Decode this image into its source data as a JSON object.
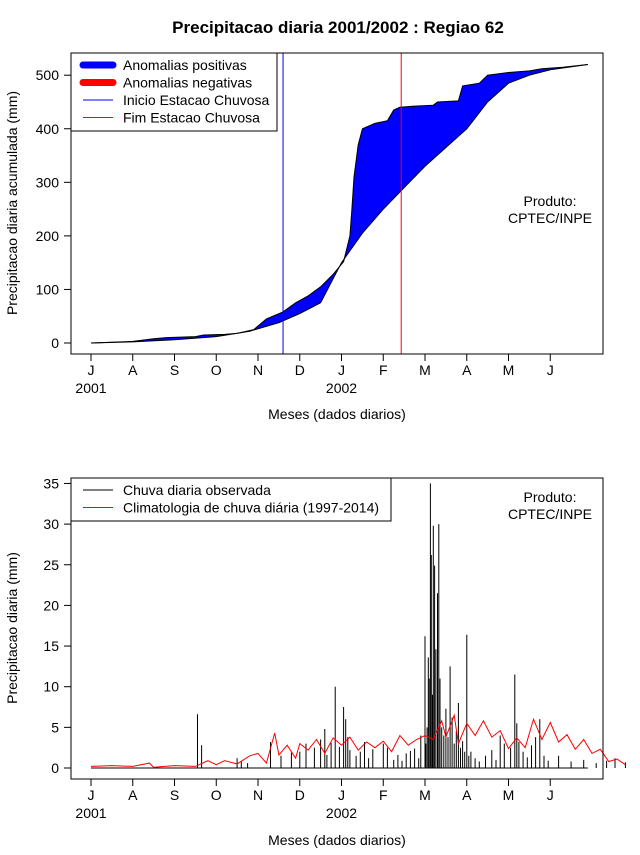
{
  "chart_data": [
    {
      "type": "area",
      "title": "Precipitacao diaria 2001/2002 : Regiao 62",
      "xlabel": "Meses (dados diarios)",
      "ylabel": "Precipitacao diaria acumulada (mm)",
      "ylim": [
        0,
        520
      ],
      "yticks": [
        0,
        100,
        200,
        300,
        400,
        500
      ],
      "month_ticks": [
        "J",
        "A",
        "S",
        "O",
        "N",
        "D",
        "J",
        "F",
        "M",
        "A",
        "M",
        "J"
      ],
      "year_labels": [
        {
          "text": "2001",
          "month_index": 0
        },
        {
          "text": "2002",
          "month_index": 6
        }
      ],
      "x_unit": "months since Jul 2001",
      "observed_cumulative": [
        [
          0,
          0
        ],
        [
          1,
          3
        ],
        [
          1.5,
          8
        ],
        [
          1.8,
          10
        ],
        [
          2.5,
          12
        ],
        [
          2.7,
          15
        ],
        [
          3.2,
          16
        ],
        [
          3.5,
          18
        ],
        [
          3.9,
          25
        ],
        [
          4.2,
          45
        ],
        [
          4.6,
          58
        ],
        [
          4.9,
          75
        ],
        [
          5.2,
          88
        ],
        [
          5.5,
          105
        ],
        [
          5.8,
          128
        ],
        [
          6.05,
          152
        ],
        [
          6.2,
          200
        ],
        [
          6.25,
          250
        ],
        [
          6.3,
          310
        ],
        [
          6.4,
          370
        ],
        [
          6.5,
          400
        ],
        [
          6.8,
          410
        ],
        [
          7.1,
          415
        ],
        [
          7.25,
          435
        ],
        [
          7.4,
          440
        ],
        [
          7.7,
          442
        ],
        [
          8.2,
          444
        ],
        [
          8.3,
          450
        ],
        [
          8.8,
          452
        ],
        [
          8.9,
          480
        ],
        [
          9.3,
          485
        ],
        [
          9.5,
          500
        ],
        [
          10,
          505
        ],
        [
          10.5,
          508
        ],
        [
          10.8,
          512
        ],
        [
          11.3,
          515
        ],
        [
          11.9,
          520
        ]
      ],
      "climatology_cumulative": [
        [
          0,
          0
        ],
        [
          1,
          2
        ],
        [
          2,
          6
        ],
        [
          3,
          12
        ],
        [
          3.8,
          22
        ],
        [
          4.5,
          38
        ],
        [
          5,
          55
        ],
        [
          5.5,
          75
        ],
        [
          6,
          150
        ],
        [
          6.5,
          205
        ],
        [
          7,
          250
        ],
        [
          7.5,
          290
        ],
        [
          8,
          330
        ],
        [
          8.5,
          365
        ],
        [
          9,
          400
        ],
        [
          9.5,
          450
        ],
        [
          10,
          485
        ],
        [
          10.5,
          500
        ],
        [
          11,
          510
        ],
        [
          11.9,
          520
        ]
      ],
      "vertical_lines": [
        {
          "name": "Inicio Estacao Chuvosa",
          "x": 4.6,
          "color": "#0000ff"
        },
        {
          "name": "Fim Estacao Chuvosa",
          "x": 7.43,
          "color": "#ff0000"
        }
      ],
      "legend": [
        {
          "label": "Anomalias positivas",
          "color": "#0000ff",
          "kind": "thick"
        },
        {
          "label": "Anomalias negativas",
          "color": "#ff0000",
          "kind": "thick"
        },
        {
          "label": "Inicio Estacao Chuvosa",
          "color": "#0000ff",
          "kind": "thin"
        },
        {
          "label": "Fim Estacao Chuvosa",
          "color": "#ff0000",
          "kind": "thin"
        }
      ],
      "legend_position": "top-left",
      "annotation": [
        "Produto:",
        "CPTEC/INPE"
      ]
    },
    {
      "type": "bar",
      "xlabel": "Meses (dados diarios)",
      "ylabel": "Precipitacao diaria (mm)",
      "ylim": [
        0,
        35
      ],
      "yticks": [
        0,
        5,
        10,
        15,
        20,
        25,
        30,
        35
      ],
      "month_ticks": [
        "J",
        "A",
        "S",
        "O",
        "N",
        "D",
        "J",
        "F",
        "M",
        "A",
        "M",
        "J"
      ],
      "year_labels": [
        {
          "text": "2001",
          "month_index": 0
        },
        {
          "text": "2002",
          "month_index": 6
        }
      ],
      "x_unit": "months since Jul 2001",
      "daily_observed": [
        [
          2.55,
          6.6
        ],
        [
          2.65,
          2.8
        ],
        [
          3.5,
          1.2
        ],
        [
          3.6,
          0.8
        ],
        [
          3.75,
          0.6
        ],
        [
          4.3,
          3.2
        ],
        [
          4.55,
          1.5
        ],
        [
          4.8,
          1.9
        ],
        [
          5.0,
          2.0
        ],
        [
          5.15,
          3.0
        ],
        [
          5.35,
          2.5
        ],
        [
          5.5,
          3.5
        ],
        [
          5.6,
          4.8
        ],
        [
          5.65,
          1.6
        ],
        [
          5.75,
          3.1
        ],
        [
          5.85,
          10.0
        ],
        [
          5.95,
          2.6
        ],
        [
          6.05,
          7.5
        ],
        [
          6.1,
          6.0
        ],
        [
          6.15,
          3.8
        ],
        [
          6.2,
          2.2
        ],
        [
          6.35,
          1.5
        ],
        [
          6.45,
          2.0
        ],
        [
          6.55,
          3.2
        ],
        [
          6.65,
          1.2
        ],
        [
          6.75,
          2.3
        ],
        [
          7.0,
          3.0
        ],
        [
          7.1,
          2.5
        ],
        [
          7.25,
          1.0
        ],
        [
          7.35,
          1.6
        ],
        [
          7.45,
          0.9
        ],
        [
          7.55,
          1.8
        ],
        [
          7.65,
          2.1
        ],
        [
          7.75,
          2.4
        ],
        [
          7.85,
          1.2
        ],
        [
          7.9,
          4.0
        ],
        [
          8.0,
          16.2
        ],
        [
          8.02,
          3.0
        ],
        [
          8.05,
          5.0
        ],
        [
          8.08,
          13.6
        ],
        [
          8.1,
          11.0
        ],
        [
          8.13,
          35.0
        ],
        [
          8.15,
          26.2
        ],
        [
          8.18,
          9.0
        ],
        [
          8.2,
          29.8
        ],
        [
          8.23,
          24.9
        ],
        [
          8.26,
          14.6
        ],
        [
          8.3,
          21.5
        ],
        [
          8.33,
          30.0
        ],
        [
          8.36,
          11.0
        ],
        [
          8.4,
          5.0
        ],
        [
          8.45,
          4.0
        ],
        [
          8.5,
          7.3
        ],
        [
          8.55,
          3.8
        ],
        [
          8.6,
          12.5
        ],
        [
          8.65,
          6.2
        ],
        [
          8.7,
          3.0
        ],
        [
          8.75,
          4.5
        ],
        [
          8.8,
          8.0
        ],
        [
          8.85,
          2.5
        ],
        [
          8.9,
          3.3
        ],
        [
          8.95,
          2.0
        ],
        [
          9.0,
          16.4
        ],
        [
          9.05,
          1.5
        ],
        [
          9.1,
          2.0
        ],
        [
          9.2,
          1.2
        ],
        [
          9.3,
          0.8
        ],
        [
          9.45,
          1.5
        ],
        [
          9.6,
          2.2
        ],
        [
          9.7,
          1.0
        ],
        [
          9.8,
          4.0
        ],
        [
          9.9,
          3.0
        ],
        [
          10.05,
          2.5
        ],
        [
          10.15,
          11.5
        ],
        [
          10.2,
          5.5
        ],
        [
          10.25,
          3.2
        ],
        [
          10.35,
          2.0
        ],
        [
          10.45,
          1.3
        ],
        [
          10.55,
          2.8
        ],
        [
          10.65,
          3.8
        ],
        [
          10.75,
          6.0
        ],
        [
          10.85,
          1.5
        ],
        [
          10.95,
          0.9
        ],
        [
          11.2,
          1.5
        ],
        [
          11.5,
          0.8
        ],
        [
          11.8,
          1.0
        ],
        [
          12.1,
          0.6
        ],
        [
          12.35,
          0.9
        ],
        [
          12.55,
          1.2
        ],
        [
          12.8,
          0.7
        ]
      ],
      "climatology_daily": [
        [
          0,
          0.2
        ],
        [
          0.5,
          0.3
        ],
        [
          1,
          0.2
        ],
        [
          1.4,
          0.6
        ],
        [
          1.5,
          0.1
        ],
        [
          2,
          0.3
        ],
        [
          2.5,
          0.2
        ],
        [
          2.8,
          0.9
        ],
        [
          3,
          0.4
        ],
        [
          3.2,
          0.9
        ],
        [
          3.5,
          0.5
        ],
        [
          3.8,
          1.5
        ],
        [
          4,
          1.8
        ],
        [
          4.2,
          0.6
        ],
        [
          4.4,
          4.3
        ],
        [
          4.5,
          1.6
        ],
        [
          4.7,
          2.8
        ],
        [
          4.9,
          1.2
        ],
        [
          5,
          3.0
        ],
        [
          5.2,
          2.2
        ],
        [
          5.4,
          3.5
        ],
        [
          5.6,
          1.8
        ],
        [
          5.8,
          3.7
        ],
        [
          6,
          2.8
        ],
        [
          6.2,
          3.8
        ],
        [
          6.4,
          2.2
        ],
        [
          6.6,
          3.2
        ],
        [
          6.8,
          2.5
        ],
        [
          7,
          3.3
        ],
        [
          7.2,
          2.0
        ],
        [
          7.4,
          4.0
        ],
        [
          7.6,
          2.8
        ],
        [
          7.8,
          3.5
        ],
        [
          8,
          4.0
        ],
        [
          8.2,
          3.5
        ],
        [
          8.4,
          5.8
        ],
        [
          8.5,
          3.8
        ],
        [
          8.7,
          6.5
        ],
        [
          8.8,
          3.0
        ],
        [
          9,
          5.5
        ],
        [
          9.2,
          4.0
        ],
        [
          9.4,
          5.8
        ],
        [
          9.6,
          3.8
        ],
        [
          9.8,
          4.6
        ],
        [
          10,
          2.4
        ],
        [
          10.2,
          3.7
        ],
        [
          10.4,
          2.5
        ],
        [
          10.6,
          6.0
        ],
        [
          10.8,
          3.5
        ],
        [
          11,
          5.6
        ],
        [
          11.2,
          3.2
        ],
        [
          11.4,
          4.1
        ],
        [
          11.6,
          2.3
        ],
        [
          11.8,
          3.5
        ],
        [
          12,
          1.8
        ],
        [
          12.2,
          2.3
        ],
        [
          12.4,
          0.8
        ],
        [
          12.6,
          1.1
        ],
        [
          12.8,
          0.4
        ]
      ],
      "legend": [
        {
          "label": "Chuva diaria observada",
          "color": "#000000",
          "kind": "thin"
        },
        {
          "label": "Climatologia de chuva diária (1997-2014)",
          "color": "#ff0000",
          "kind": "thin"
        }
      ],
      "legend_position": "top-left",
      "annotation": [
        "Produto:",
        "CPTEC/INPE"
      ]
    }
  ]
}
